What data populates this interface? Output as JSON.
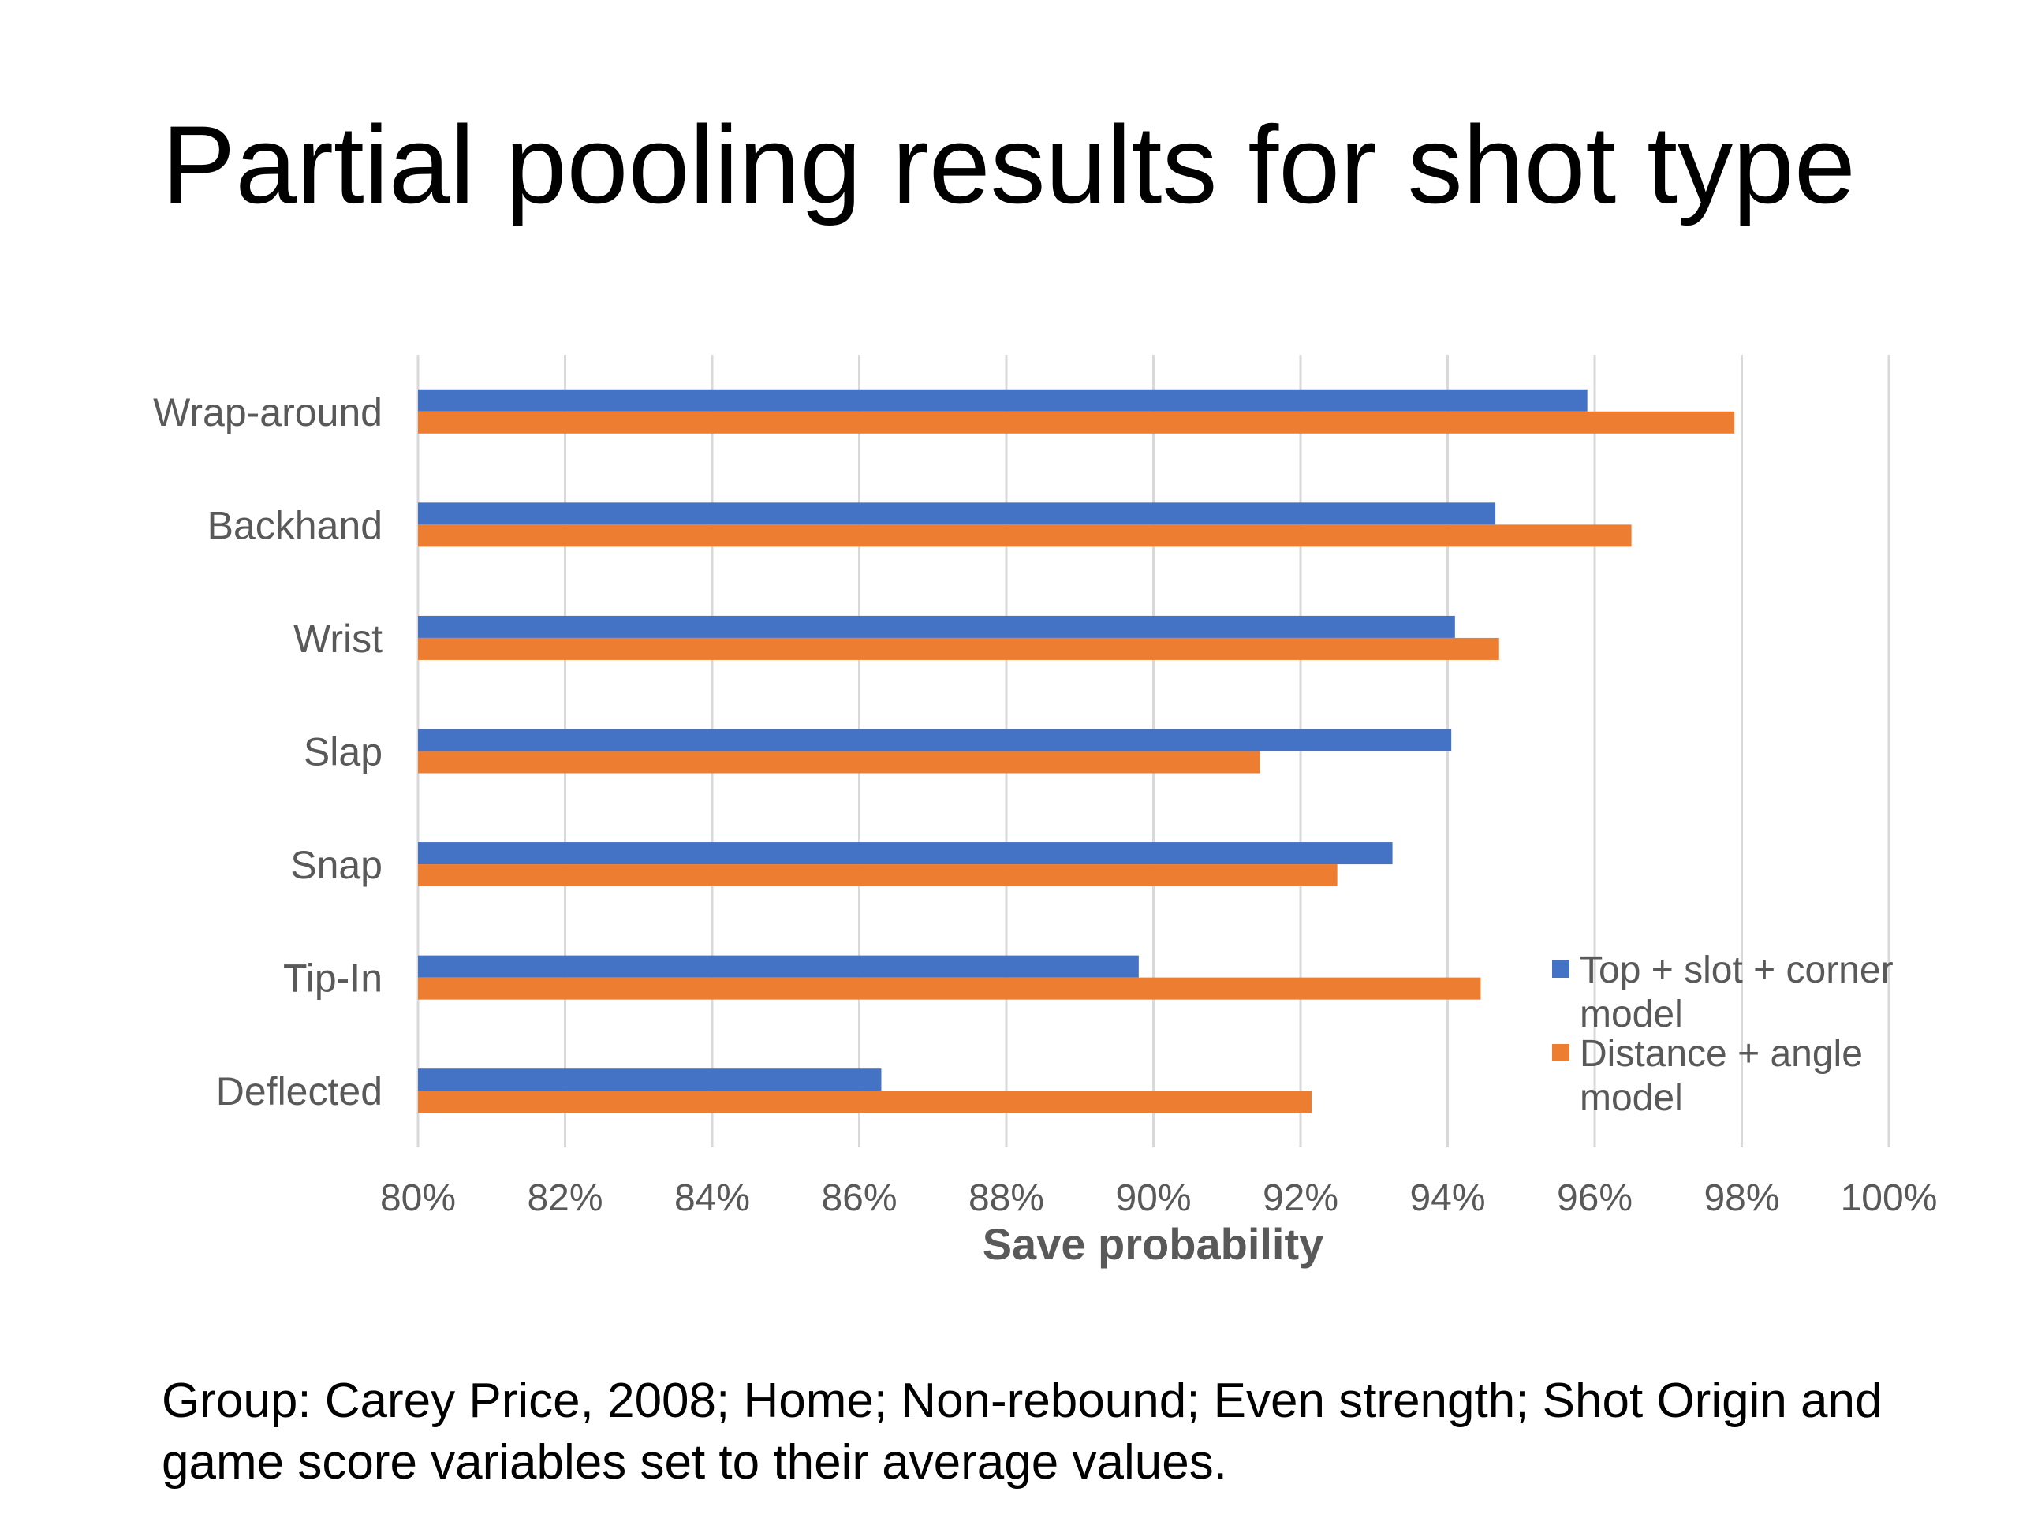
{
  "slide": {
    "title": "Partial pooling results for shot type",
    "footnote": "Group: Carey Price, 2008; Home; Non-rebound; Even strength; Shot Origin and game score variables set to their average values."
  },
  "chart_data": {
    "type": "bar",
    "orientation": "horizontal",
    "categories": [
      "Wrap-around",
      "Backhand",
      "Wrist",
      "Slap",
      "Snap",
      "Tip-In",
      "Deflected"
    ],
    "series": [
      {
        "name": "Top + slot + corner model",
        "color": "#4472C4",
        "values": [
          95.9,
          94.65,
          94.1,
          94.05,
          93.25,
          89.8,
          86.3
        ]
      },
      {
        "name": "Distance + angle model",
        "color": "#ED7D31",
        "values": [
          97.9,
          96.5,
          94.7,
          91.45,
          92.5,
          94.45,
          92.15
        ]
      }
    ],
    "xlabel": "Save probability",
    "ylabel": "",
    "xlim": [
      80,
      100
    ],
    "xticks": [
      80,
      82,
      84,
      86,
      88,
      90,
      92,
      94,
      96,
      98,
      100
    ],
    "tick_labels": [
      "80%",
      "82%",
      "84%",
      "86%",
      "88%",
      "90%",
      "92%",
      "94%",
      "96%",
      "98%",
      "100%"
    ],
    "grid": true,
    "legend": "right"
  }
}
